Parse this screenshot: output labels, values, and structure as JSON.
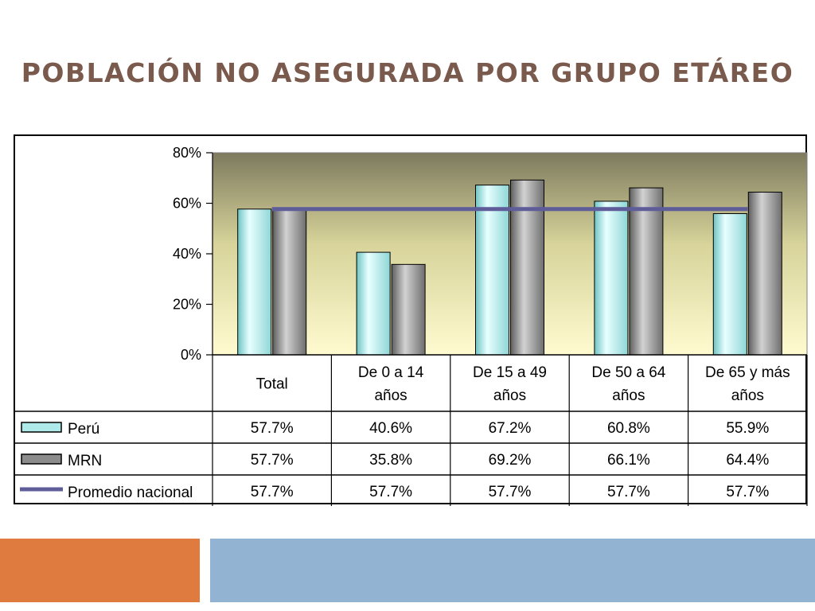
{
  "slide": {
    "title": "POBLACIÓN NO ASEGURADA POR GRUPO ETÁREO"
  },
  "colors": {
    "title": "#7a5a4c",
    "peru_bar": "#aeeaea",
    "mrn_bar": "#8c8c8c",
    "average_line": "#5f5c9a",
    "plot_bg_top": "#7d7a5e",
    "plot_bg_bottom": "#fffbd0",
    "accent_orange": "#e07b3f",
    "accent_blue": "#93b3d2"
  },
  "chart_data": {
    "type": "bar",
    "title": "",
    "xlabel": "",
    "ylabel": "",
    "ylim": [
      0,
      0.8
    ],
    "yticks": [
      0,
      0.2,
      0.4,
      0.6,
      0.8
    ],
    "ytick_labels": [
      "0%",
      "20%",
      "40%",
      "60%",
      "80%"
    ],
    "grid": false,
    "legend": "data-table",
    "categories": [
      [
        "Total"
      ],
      [
        "De 0 a 14",
        "años"
      ],
      [
        "De 15 a 49",
        "años"
      ],
      [
        "De 50 a 64",
        "años"
      ],
      [
        "De 65 y más",
        "años"
      ]
    ],
    "series": [
      {
        "name": "Perú",
        "type": "bar",
        "values": [
          0.577,
          0.406,
          0.672,
          0.608,
          0.559
        ],
        "labels": [
          "57.7%",
          "40.6%",
          "67.2%",
          "60.8%",
          "55.9%"
        ]
      },
      {
        "name": "MRN",
        "type": "bar",
        "values": [
          0.577,
          0.358,
          0.692,
          0.661,
          0.644
        ],
        "labels": [
          "57.7%",
          "35.8%",
          "69.2%",
          "66.1%",
          "64.4%"
        ]
      },
      {
        "name": "Promedio nacional",
        "type": "line",
        "values": [
          0.577,
          0.577,
          0.577,
          0.577,
          0.577
        ],
        "labels": [
          "57.7%",
          "57.7%",
          "57.7%",
          "57.7%",
          "57.7%"
        ]
      }
    ]
  }
}
